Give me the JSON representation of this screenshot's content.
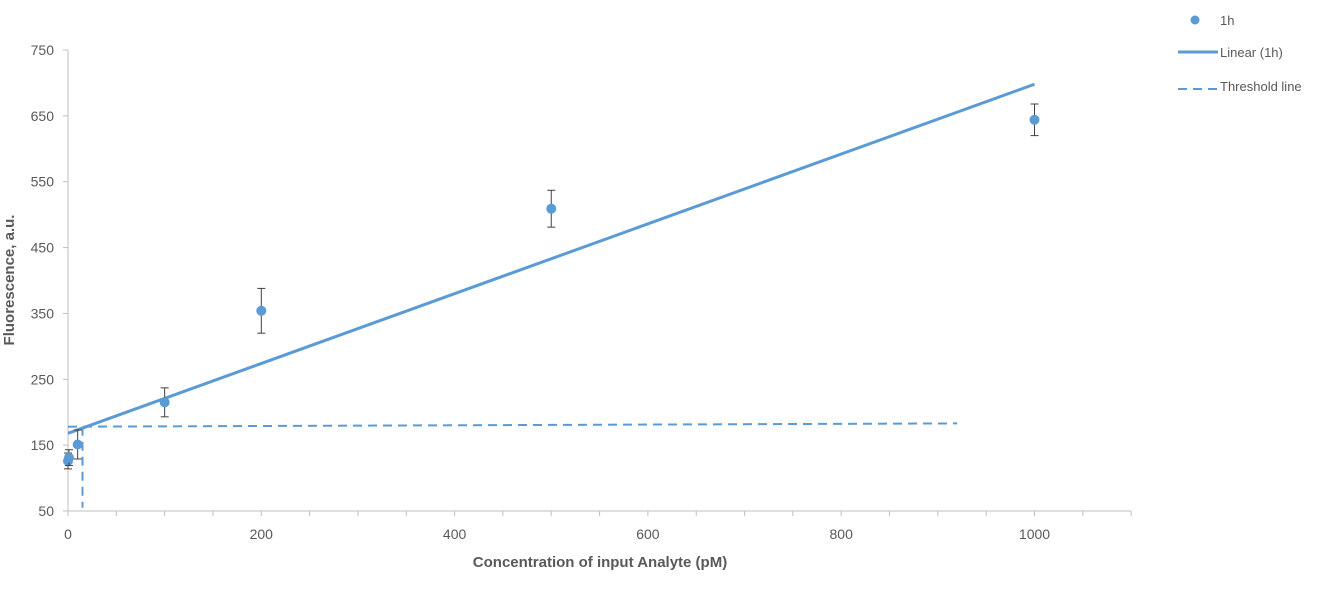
{
  "chart_data": {
    "type": "scatter",
    "title": "",
    "xlabel": "Concentration of input Analyte (pM)",
    "ylabel": "Fluorescence, a.u.",
    "xlim": [
      0,
      1100
    ],
    "ylim": [
      50,
      750
    ],
    "x_ticks": [
      0,
      200,
      400,
      600,
      800,
      1000
    ],
    "x_minor_step": 50,
    "y_ticks": [
      50,
      150,
      250,
      350,
      450,
      550,
      650,
      750
    ],
    "grid": false,
    "legend_position": "top-right",
    "colors": {
      "series": "#5b9bd5",
      "axis": "#bfbfbf",
      "text": "#595959",
      "errorbar": "#404040"
    },
    "series": [
      {
        "name": "1h",
        "kind": "points",
        "x": [
          0,
          1,
          10,
          100,
          200,
          500,
          1000
        ],
        "y": [
          126,
          131,
          151,
          215,
          354,
          509,
          644
        ],
        "err": [
          12,
          12,
          22,
          22,
          34,
          28,
          24
        ]
      },
      {
        "name": "Linear (1h)",
        "kind": "trendline",
        "x": [
          0,
          1000
        ],
        "y": [
          168,
          698
        ]
      },
      {
        "name": "Threshold line",
        "kind": "dashed",
        "x": [
          0,
          920
        ],
        "y": [
          178,
          183
        ],
        "vertical_x": 15,
        "vertical_y": [
          55,
          178
        ]
      }
    ]
  }
}
